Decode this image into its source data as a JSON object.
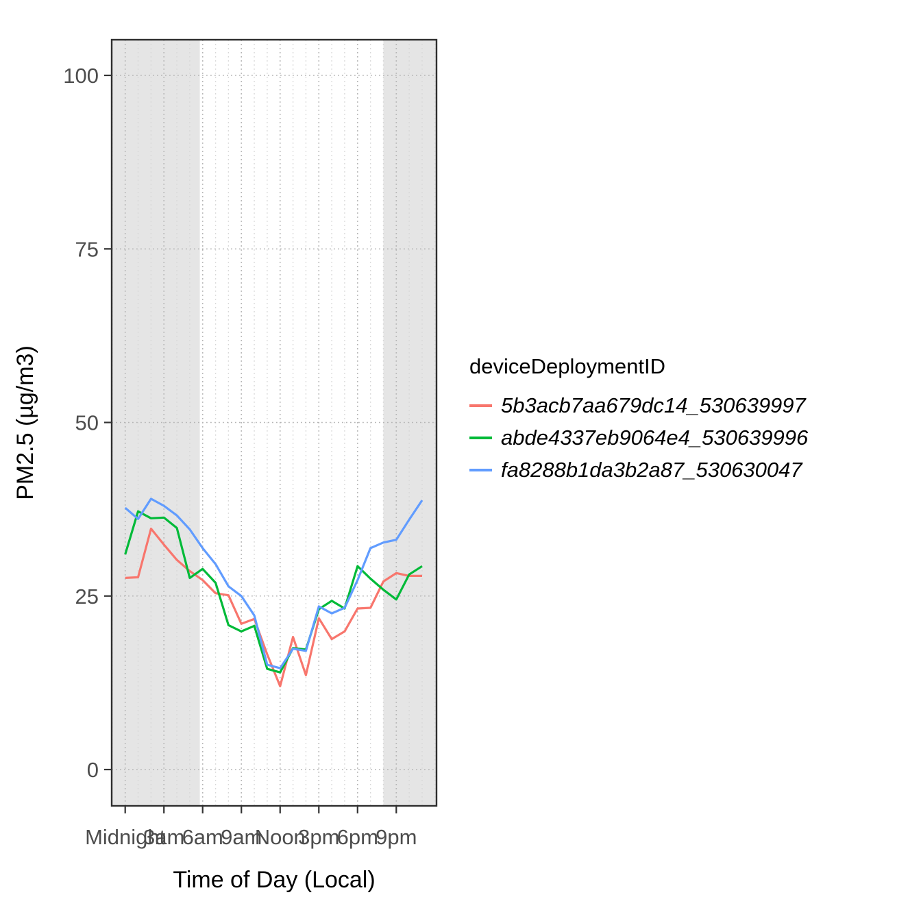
{
  "chart_data": {
    "type": "line",
    "title": "",
    "x_label": "Time of Day (Local)",
    "y_label": "PM2.5 (µg/m3)",
    "legend_title": "deviceDeploymentID",
    "x_hours": [
      0,
      1,
      2,
      3,
      4,
      5,
      6,
      7,
      8,
      9,
      10,
      11,
      12,
      13,
      14,
      15,
      16,
      17,
      18,
      19,
      20,
      21,
      22,
      23
    ],
    "x_ticks": [
      {
        "hour": 0,
        "label": "Midnight"
      },
      {
        "hour": 3,
        "label": "3am"
      },
      {
        "hour": 6,
        "label": "6am"
      },
      {
        "hour": 9,
        "label": "9am"
      },
      {
        "hour": 12,
        "label": "Noon"
      },
      {
        "hour": 15,
        "label": "3pm"
      },
      {
        "hour": 18,
        "label": "6pm"
      },
      {
        "hour": 21,
        "label": "9pm"
      }
    ],
    "y_ticks": [
      0,
      25,
      50,
      75,
      100
    ],
    "ylim": [
      0,
      100
    ],
    "xlim_hours": [
      -1.05,
      24.12
    ],
    "grid": "dotted, major horizontal at y ticks, vertical every hour (minor) and every 3 hours (major)",
    "legend_position": "right",
    "night_shade_hours": [
      [
        -1.05,
        5.78
      ],
      [
        20.0,
        24.12
      ]
    ],
    "night_shade_color": "#e5e5e5",
    "series": [
      {
        "name": "5b3acb7aa679dc14_530639997",
        "color": "#F8766D",
        "values": [
          27.6,
          27.7,
          34.7,
          32.4,
          30.2,
          28.6,
          27.3,
          25.4,
          25.1,
          21.0,
          21.7,
          16.6,
          12.0,
          19.1,
          13.6,
          21.8,
          18.8,
          19.9,
          23.2,
          23.3,
          27.1,
          28.3,
          27.9,
          27.9
        ]
      },
      {
        "name": "abde4337eb9064e4_530639996",
        "color": "#00BA38",
        "values": [
          31.0,
          37.2,
          36.2,
          36.3,
          34.8,
          27.6,
          28.9,
          26.9,
          20.8,
          19.9,
          20.7,
          14.5,
          14.0,
          17.5,
          17.3,
          23.1,
          24.3,
          23.2,
          29.3,
          27.5,
          25.9,
          24.5,
          28.1,
          29.3
        ]
      },
      {
        "name": "fa8288b1da3b2a87_530630047",
        "color": "#619CFF",
        "values": [
          37.7,
          36.1,
          39.0,
          38.0,
          36.6,
          34.6,
          31.9,
          29.6,
          26.4,
          25.0,
          22.2,
          15.1,
          14.6,
          17.4,
          17.1,
          23.5,
          22.5,
          23.3,
          27.3,
          31.9,
          32.7,
          33.1,
          36.0,
          38.8
        ]
      }
    ]
  }
}
